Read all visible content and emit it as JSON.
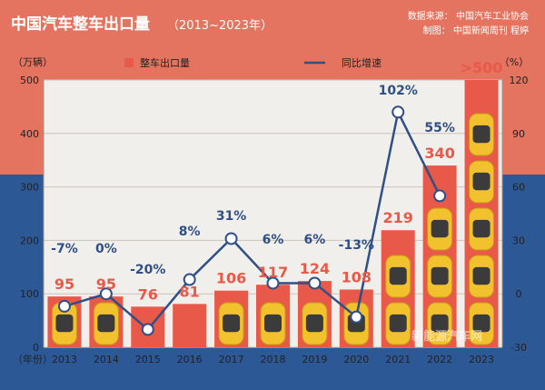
{
  "header": {
    "title": "中国汽车整车出口量",
    "title_range": "（2013~2023年）",
    "source_line": "数据来源： 中国汽车工业协会",
    "credit_line": "制图： 中国新闻周刊 程婷"
  },
  "watermark": "新能源汽车网",
  "colors": {
    "top_band": "#e4735f",
    "bottom_band": "#2c5896",
    "bar": "#e8594a",
    "car_body": "#f2c12e",
    "line": "#2f4f86",
    "title_text": "#ffffff",
    "axis_text": "#222222",
    "bar_label": "#e8594a",
    "line_label": "#2f4f86"
  },
  "chart_data": {
    "type": "bar+line",
    "categories": [
      "2013",
      "2014",
      "2015",
      "2016",
      "2017",
      "2018",
      "2019",
      "2020",
      "2021",
      "2022",
      "2023"
    ],
    "series": [
      {
        "name": "整车出口量",
        "axis": "left",
        "values": [
          95,
          95,
          76,
          81,
          106,
          117,
          124,
          108,
          219,
          340,
          500
        ],
        "value_labels": [
          "95",
          "95",
          "76",
          "81",
          "106",
          "117",
          "124",
          "108",
          "219",
          "340",
          ">500"
        ]
      },
      {
        "name": "同比增速",
        "axis": "right",
        "values": [
          -7,
          0,
          -20,
          8,
          31,
          6,
          6,
          -13,
          102,
          55,
          null
        ],
        "value_labels": [
          "-7%",
          "0%",
          "-20%",
          "8%",
          "31%",
          "6%",
          "6%",
          "-13%",
          "102%",
          "55%",
          ""
        ]
      }
    ],
    "y_left": {
      "unit": "（万辆）",
      "lim": [
        0,
        500
      ],
      "ticks": [
        0,
        100,
        200,
        300,
        400,
        500
      ]
    },
    "y_right": {
      "unit": "（%）",
      "lim": [
        -30,
        120
      ],
      "ticks": [
        -30,
        0,
        30,
        60,
        90,
        120
      ]
    },
    "x_unit": "（年份）",
    "grid": true,
    "legend_position": "top"
  }
}
